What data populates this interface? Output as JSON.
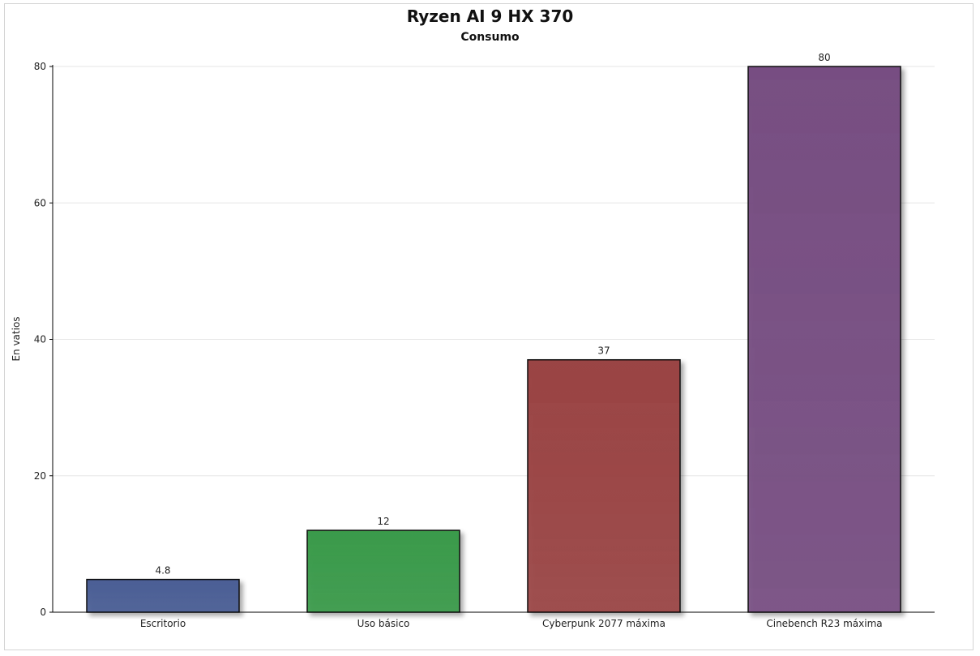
{
  "chart_data": {
    "type": "bar",
    "title": "Ryzen AI 9 HX 370",
    "subtitle": "Consumo",
    "xlabel": "",
    "ylabel": "En vatios",
    "ylim": [
      0,
      80
    ],
    "yticks": [
      0,
      20,
      40,
      60,
      80
    ],
    "grid": true,
    "categories": [
      "Escritorio",
      "Uso básico",
      "Cyberpunk 2077 máxima",
      "Cinebench R23 máxima"
    ],
    "values": [
      4.8,
      12,
      37,
      80
    ],
    "data_labels": [
      "4.8",
      "12",
      "37",
      "80"
    ],
    "colors": [
      "#4a5e95",
      "#3a9a4a",
      "#9a4444",
      "#774e82"
    ]
  }
}
